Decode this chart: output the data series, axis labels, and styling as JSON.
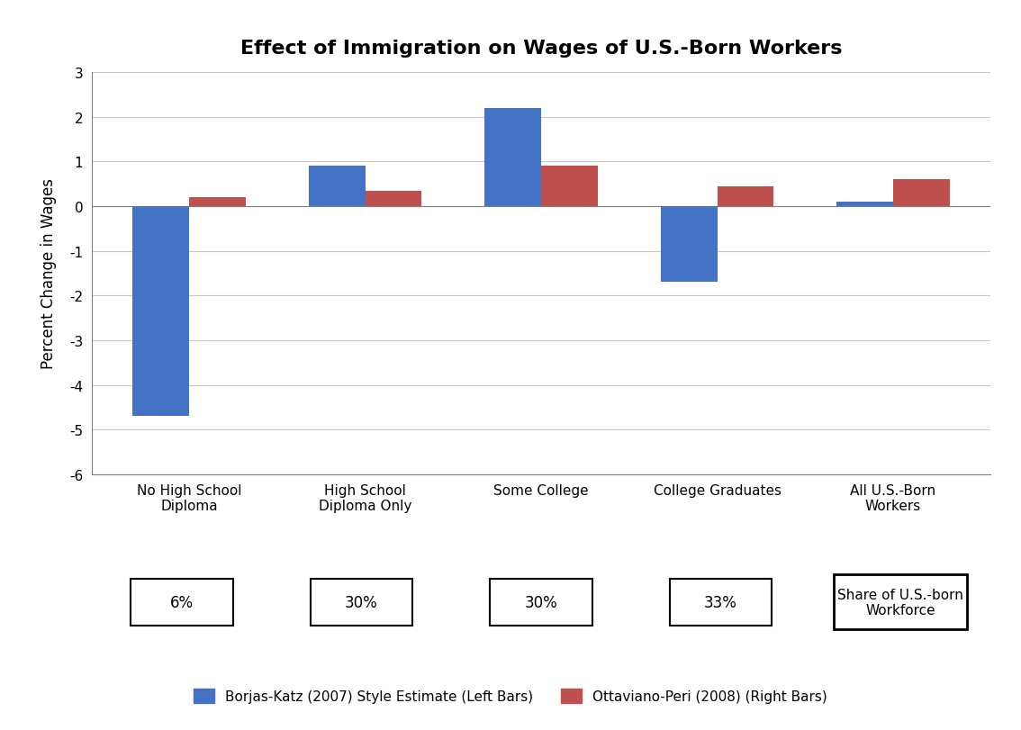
{
  "title": "Effect of Immigration on Wages of U.S.-Born Workers",
  "ylabel": "Percent Change in Wages",
  "categories": [
    "No High School\nDiploma",
    "High School\nDiploma Only",
    "Some College",
    "College Graduates",
    "All U.S.-Born\nWorkers"
  ],
  "borjas_values": [
    -4.7,
    0.9,
    2.2,
    -1.7,
    0.1
  ],
  "peri_values": [
    0.2,
    0.35,
    0.9,
    0.45,
    0.6
  ],
  "shares": [
    "6%",
    "30%",
    "30%",
    "33%"
  ],
  "share_label": "Share of U.S.-born\nWorkforce",
  "ylim": [
    -6,
    3
  ],
  "yticks": [
    -6,
    -5,
    -4,
    -3,
    -2,
    -1,
    0,
    1,
    2,
    3
  ],
  "bar_width": 0.32,
  "blue_color": "#4472C4",
  "red_color": "#C0504D",
  "legend1": "Borjas-Katz (2007) Style Estimate (Left Bars)",
  "legend2": "Ottaviano-Peri (2008) (Right Bars)",
  "background_color": "#FFFFFF",
  "grid_color": "#C8C8C8"
}
